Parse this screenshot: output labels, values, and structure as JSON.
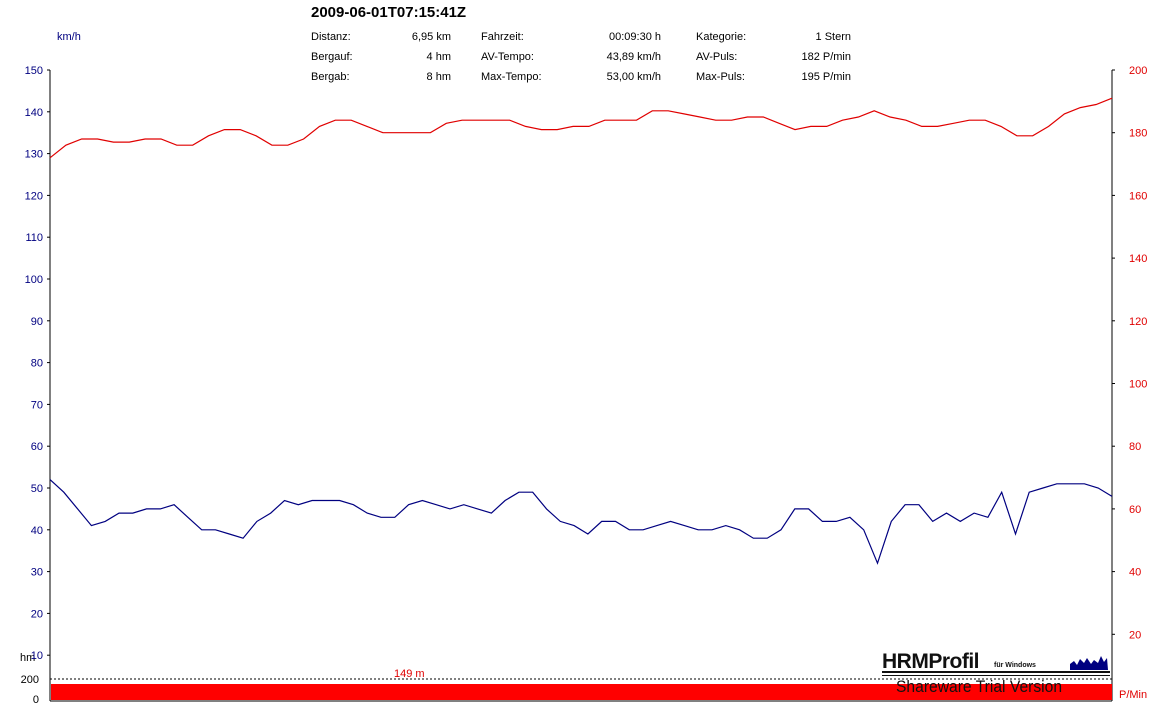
{
  "header": {
    "title": "2009-06-01T07:15:41Z",
    "stats": [
      {
        "label": "Distanz:",
        "value": "6,95 km"
      },
      {
        "label": "Bergauf:",
        "value": "4 hm"
      },
      {
        "label": "Bergab:",
        "value": "8 hm"
      },
      {
        "label": "Fahrzeit:",
        "value": "00:09:30 h"
      },
      {
        "label": "AV-Tempo:",
        "value": "43,89 km/h"
      },
      {
        "label": "Max-Tempo:",
        "value": "53,00 km/h"
      },
      {
        "label": "Kategorie:",
        "value": "1 Stern"
      },
      {
        "label": "AV-Puls:",
        "value": "182 P/min"
      },
      {
        "label": "Max-Puls:",
        "value": "195 P/min"
      }
    ]
  },
  "units": {
    "left": "km/h",
    "altitude": "hm",
    "right": "P/Min"
  },
  "logo": {
    "name": "HRMProfil",
    "sub": "für Windows",
    "trial": "Shareware Trial  Version"
  },
  "colors": {
    "speed": "#000080",
    "pulse": "#e00000",
    "altitude": "#ff0000"
  },
  "chart_data": {
    "type": "line",
    "ylim_speed": [
      0,
      150
    ],
    "ylim_pulse": [
      0,
      200
    ],
    "speed_ticks": [
      10,
      20,
      30,
      40,
      50,
      60,
      70,
      80,
      90,
      100,
      110,
      120,
      130,
      140,
      150
    ],
    "pulse_ticks": [
      20,
      40,
      60,
      80,
      100,
      120,
      140,
      160,
      180,
      200
    ],
    "altitude_ticks": [
      0,
      200
    ],
    "altitude_label": "149 m",
    "series": [
      {
        "axis": "right",
        "values": [
          172,
          176,
          178,
          178,
          177,
          177,
          178,
          178,
          176,
          176,
          179,
          181,
          181,
          179,
          176,
          176,
          178,
          182,
          184,
          184,
          182,
          180,
          180,
          180,
          180,
          183,
          184,
          184,
          184,
          184,
          182,
          181,
          181,
          182,
          182,
          184,
          184,
          184,
          187,
          187,
          186,
          185,
          184,
          184,
          185,
          185,
          183,
          181,
          182,
          182,
          184,
          185,
          187,
          185,
          184,
          182,
          182,
          183,
          184,
          184,
          182,
          179,
          179,
          182,
          186,
          188,
          189,
          191
        ]
      },
      {
        "axis": "left",
        "values": [
          52,
          49,
          45,
          41,
          42,
          44,
          44,
          45,
          45,
          46,
          43,
          40,
          40,
          39,
          38,
          42,
          44,
          47,
          46,
          47,
          47,
          47,
          46,
          44,
          43,
          43,
          46,
          47,
          46,
          45,
          46,
          45,
          44,
          47,
          49,
          49,
          45,
          42,
          41,
          39,
          42,
          42,
          40,
          40,
          41,
          42,
          41,
          40,
          40,
          41,
          40,
          38,
          38,
          40,
          45,
          45,
          42,
          42,
          43,
          40,
          32,
          42,
          46,
          46,
          42,
          44,
          42,
          44,
          43,
          49,
          39,
          49,
          50,
          51,
          51,
          51,
          50,
          48
        ]
      }
    ],
    "altitude": {
      "values": [
        149,
        149,
        149,
        149,
        149
      ]
    }
  }
}
